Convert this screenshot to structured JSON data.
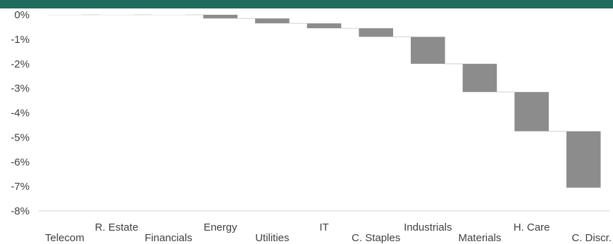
{
  "title_bar": {
    "text": "",
    "color": "#1f6b5c"
  },
  "chart_data": {
    "type": "bar",
    "subtype": "waterfall",
    "categories": [
      "Telecom",
      "R. Estate",
      "Financials",
      "Energy",
      "Utilities",
      "IT",
      "C. Staples",
      "Industrials",
      "Materials",
      "H. Care",
      "C. Discr."
    ],
    "values": [
      0.0,
      0.0,
      0.0,
      -0.15,
      -0.2,
      -0.2,
      -0.35,
      -1.1,
      -1.15,
      -1.6,
      -2.3
    ],
    "cumulative_end": [
      0.0,
      0.0,
      0.0,
      -0.15,
      -0.35,
      -0.55,
      -0.9,
      -2.0,
      -3.15,
      -4.75,
      -7.05
    ],
    "y_ticks": [
      "0%",
      "-1%",
      "-2%",
      "-3%",
      "-4%",
      "-5%",
      "-6%",
      "-7%",
      "-8%"
    ],
    "ylim": [
      -8,
      0
    ],
    "grid": false,
    "legend": "none",
    "bar_color": "#8c8c8c",
    "connector_color": "#d9d9d9",
    "axis_color": "#d9d9d9"
  }
}
